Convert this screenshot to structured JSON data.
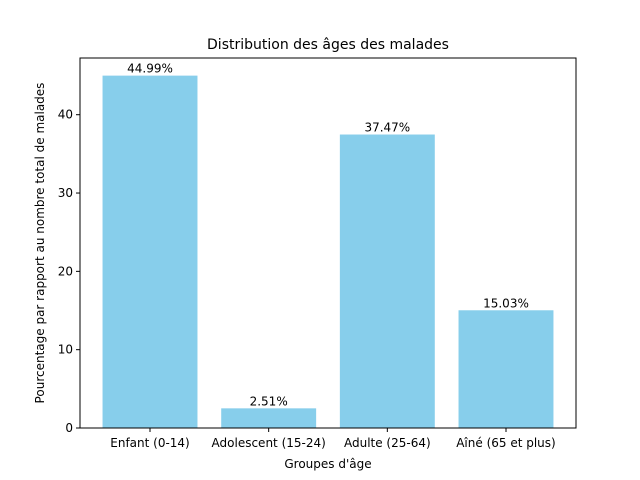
{
  "chart_data": {
    "type": "bar",
    "title": "Distribution des âges des malades",
    "xlabel": "Groupes d'âge",
    "ylabel": "Pourcentage par rapport au nombre total de malades",
    "categories": [
      "Enfant (0-14)",
      "Adolescent (15-24)",
      "Adulte (25-64)",
      "Aîné (65 et plus)"
    ],
    "values": [
      44.99,
      2.51,
      37.47,
      15.03
    ],
    "value_labels": [
      "44.99%",
      "2.51%",
      "37.47%",
      "15.03%"
    ],
    "ylim": [
      0,
      47.24
    ],
    "yticks": [
      0,
      10,
      20,
      30,
      40
    ],
    "grid": false,
    "bar_color": "#87CEEB"
  }
}
